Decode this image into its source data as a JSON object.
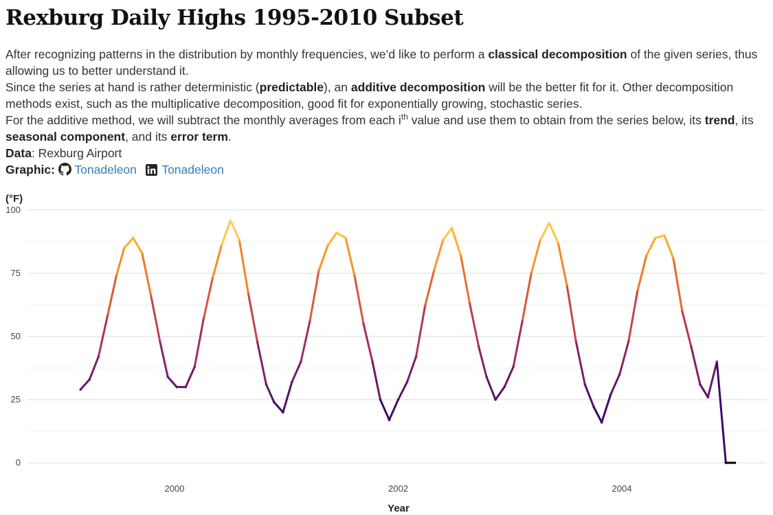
{
  "header": {
    "title": "Rexburg Daily Highs 1995-2010 Subset"
  },
  "description": {
    "l1_a": "After recognizing patterns in the distribution by monthly frequencies, we’d like to perform a ",
    "l1_b": "classical decomposition",
    "l1_c": " of the given series, thus allowing us to better understand it.",
    "l2_a": "Since the series at hand is rather deterministic (",
    "l2_b": "predictable",
    "l2_c": "), an ",
    "l2_d": "additive decomposition",
    "l2_e": " will be the better fit for it. Other decomposition methods exist, such as the multiplicative decomposition, good fit for exponentially growing, stochastic series.",
    "l3_a": "For the additive method, we will subtract the monthly averages from each i",
    "l3_sup": "th",
    "l3_b": " value and use them to obtain from the series below, its ",
    "l3_c": "trend",
    "l3_d": ", its ",
    "l3_e": "seasonal component",
    "l3_f": ", and its ",
    "l3_g": "error term",
    "l3_h": "."
  },
  "credits": {
    "data_label": "Data",
    "data_value": ": Rexburg Airport",
    "graphic_label": "Graphic:",
    "github_icon": "github-icon",
    "github_handle": "Tonadeleon",
    "linkedin_icon": "linkedin-icon",
    "linkedin_handle": "Tonadeleon",
    "link_color": "#3a7bb5"
  },
  "chart_data": {
    "type": "line",
    "ylabel": "(°F)",
    "xlabel": "Year",
    "ylim": [
      0,
      100
    ],
    "y_ticks": [
      0,
      25,
      50,
      75,
      100
    ],
    "xlim": [
      1999.1,
      2005.5
    ],
    "x_ticks": [
      2000,
      2002,
      2004
    ],
    "x_tick_labels": [
      "2000",
      "2002",
      "2004"
    ],
    "grid": true,
    "color_scale": "inferno (color by temperature, dark = cold, yellow = hot)",
    "series": [
      {
        "x": [
          1999.16,
          1999.24,
          1999.32,
          1999.4,
          1999.48,
          1999.55,
          1999.63,
          1999.71,
          1999.79,
          1999.87,
          1999.94,
          2000.02,
          2000.1,
          2000.18,
          2000.26,
          2000.34,
          2000.42,
          2000.5,
          2000.58,
          2000.66,
          2000.74,
          2000.82,
          2000.89,
          2000.97,
          2001.05,
          2001.13,
          2001.21,
          2001.29,
          2001.37,
          2001.45,
          2001.53,
          2001.61,
          2001.69,
          2001.77,
          2001.84,
          2001.92,
          2002.0,
          2002.08,
          2002.16,
          2002.24,
          2002.32,
          2002.4,
          2002.48,
          2002.56,
          2002.64,
          2002.72,
          2002.79,
          2002.87,
          2002.95,
          2003.03,
          2003.11,
          2003.19,
          2003.27,
          2003.35,
          2003.43,
          2003.51,
          2003.59,
          2003.67,
          2003.75,
          2003.82,
          2003.9,
          2003.98,
          2004.06,
          2004.14,
          2004.22,
          2004.3,
          2004.38,
          2004.46,
          2004.54,
          2004.62,
          2004.7,
          2004.77,
          2004.85,
          2004.93,
          2005.01
        ],
        "values": [
          29,
          33,
          42,
          58,
          74,
          85,
          89,
          83,
          66,
          48,
          34,
          30,
          30,
          38,
          57,
          73,
          86,
          96,
          88,
          67,
          48,
          31,
          24,
          20,
          32,
          40,
          56,
          76,
          86,
          91,
          89,
          74,
          55,
          40,
          25,
          17,
          25,
          32,
          42,
          62,
          76,
          88,
          93,
          82,
          63,
          46,
          34,
          25,
          30,
          38,
          56,
          75,
          88,
          95,
          87,
          70,
          48,
          31,
          22,
          16,
          27,
          35,
          48,
          68,
          82,
          89,
          90,
          81,
          60,
          46,
          31,
          26,
          40,
          0,
          0
        ]
      }
    ]
  }
}
